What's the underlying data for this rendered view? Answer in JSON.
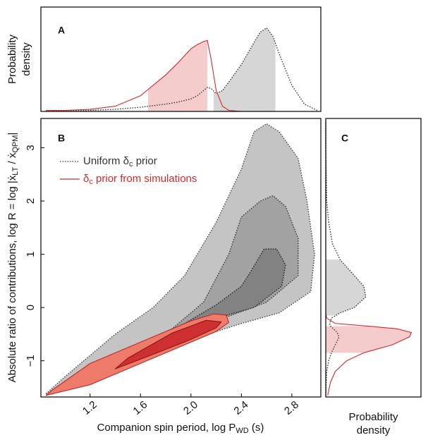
{
  "chart_data": [
    {
      "type": "line",
      "panel": "A",
      "orientation": "horizontal",
      "ylabel": [
        "Probability",
        "density"
      ],
      "xlim": [
        0.81,
        3.03
      ],
      "ylim": [
        0,
        1
      ],
      "x": [
        0.85,
        1.0,
        1.2,
        1.4,
        1.6,
        1.8,
        1.9,
        2.0,
        2.05,
        2.1,
        2.13,
        2.16,
        2.2,
        2.25,
        2.3,
        2.4,
        2.5,
        2.55,
        2.6,
        2.65,
        2.7,
        2.8,
        2.9,
        3.0
      ],
      "series": [
        {
          "color": "#333333",
          "style": "dotted",
          "fill": "#d6d6d6",
          "interval": [
            2.18,
            2.67
          ],
          "values": [
            0,
            0.005,
            0.01,
            0.02,
            0.04,
            0.07,
            0.09,
            0.12,
            0.15,
            0.2,
            0.23,
            0.22,
            0.17,
            0.2,
            0.28,
            0.45,
            0.66,
            0.76,
            0.8,
            0.72,
            0.55,
            0.25,
            0.07,
            0.01
          ]
        },
        {
          "color": "#d42a2a",
          "style": "solid",
          "fill": "#f5cccc",
          "interval": [
            1.66,
            2.13
          ],
          "values": [
            0.01,
            0.01,
            0.02,
            0.05,
            0.15,
            0.35,
            0.47,
            0.6,
            0.64,
            0.67,
            0.68,
            0.5,
            0.2,
            0.05,
            0.01,
            0,
            0,
            0,
            0,
            0,
            0,
            0,
            0,
            0
          ]
        }
      ]
    },
    {
      "type": "contour",
      "panel": "B",
      "xlabel": [
        "Companion spin period, log P",
        "WD",
        " (s)"
      ],
      "ylabel": [
        "Absolute ratio of contributions, log R = log |ẋ",
        "LT",
        " / ẋ",
        "QPM",
        "|"
      ],
      "xlim": [
        0.81,
        3.03
      ],
      "ylim": [
        -1.68,
        3.55
      ],
      "xticks": [
        1.2,
        1.6,
        {
          "value": 2,
          "label": "2.0"
        },
        2.4,
        2.8
      ],
      "yticks": [
        {
          "value": -1,
          "label": "−1"
        },
        0,
        1,
        2,
        3
      ],
      "legend": [
        {
          "parts": [
            "Uniform δ",
            "c",
            " prior"
          ],
          "color": "#333333",
          "style": "dotted"
        },
        {
          "parts": [
            "δ",
            "c",
            " prior from simulations"
          ],
          "color": "#d42a2a",
          "style": "solid"
        }
      ],
      "contours": [
        {
          "fill": "#c4c4c4",
          "edge": "#444444",
          "style": "dotted",
          "x": [
            0.85,
            1.2,
            1.6,
            2.0,
            2.4,
            2.7,
            2.95,
            2.98,
            2.92,
            2.85,
            2.7,
            2.6,
            2.5,
            2.4,
            2.3,
            2.2,
            1.95,
            1.7,
            1.4,
            1.0
          ],
          "y": [
            -1.62,
            -1.4,
            -1.0,
            -0.6,
            -0.3,
            -0.1,
            0.3,
            1.0,
            2.0,
            2.8,
            3.3,
            3.45,
            3.3,
            2.6,
            2.1,
            1.6,
            0.6,
            0.0,
            -0.5,
            -1.3
          ]
        },
        {
          "fill": "#a2a2a2",
          "edge": "#333333",
          "style": "dotted",
          "x": [
            1.6,
            1.9,
            2.2,
            2.6,
            2.85,
            2.85,
            2.75,
            2.65,
            2.55,
            2.4,
            2.3,
            2.1,
            1.8
          ],
          "y": [
            -0.9,
            -0.6,
            -0.25,
            0.1,
            0.6,
            1.3,
            1.9,
            2.1,
            2.0,
            1.7,
            1.0,
            0.1,
            -0.5
          ]
        },
        {
          "fill": "#828282",
          "edge": "#222222",
          "style": "dotted",
          "x": [
            1.95,
            2.2,
            2.5,
            2.72,
            2.75,
            2.68,
            2.58,
            2.48,
            2.4,
            2.2,
            1.95
          ],
          "y": [
            -0.42,
            -0.2,
            0.0,
            0.4,
            0.8,
            1.1,
            1.1,
            0.7,
            0.4,
            0.05,
            -0.3
          ]
        },
        {
          "fill": "#ee7a6a",
          "edge": "#b82020",
          "style": "solid",
          "x": [
            0.85,
            1.2,
            1.6,
            1.9,
            2.2,
            2.3,
            2.28,
            2.18,
            2.0,
            1.6,
            1.2,
            0.9
          ],
          "y": [
            -1.65,
            -1.45,
            -1.05,
            -0.75,
            -0.45,
            -0.28,
            -0.14,
            -0.12,
            -0.25,
            -0.65,
            -1.05,
            -1.55
          ]
        },
        {
          "fill": "#cc3030",
          "edge": "#8a1010",
          "style": "solid",
          "x": [
            1.4,
            1.7,
            2.0,
            2.2,
            2.24,
            2.12,
            1.85,
            1.5
          ],
          "y": [
            -1.15,
            -0.88,
            -0.6,
            -0.38,
            -0.27,
            -0.24,
            -0.48,
            -0.95
          ]
        }
      ]
    },
    {
      "type": "line",
      "panel": "C",
      "orientation": "vertical",
      "xlabel": [
        "Probability",
        "density"
      ],
      "xlim": [
        0,
        1
      ],
      "ylim": [
        -1.68,
        3.55
      ],
      "y": [
        -1.65,
        -1.4,
        -1.2,
        -1.0,
        -0.85,
        -0.7,
        -0.55,
        -0.47,
        -0.4,
        -0.35,
        -0.3,
        -0.2,
        -0.1,
        0,
        0.2,
        0.4,
        0.6,
        0.9,
        1.2,
        1.6,
        2.0,
        2.5,
        3.0,
        3.5
      ],
      "series": [
        {
          "color": "#333333",
          "style": "dotted",
          "fill": "#d6d6d6",
          "interval": [
            -0.15,
            0.9
          ],
          "values": [
            0,
            0.005,
            0.01,
            0.03,
            0.06,
            0.1,
            0.14,
            0.12,
            0.08,
            0.05,
            0.04,
            0.06,
            0.15,
            0.3,
            0.42,
            0.4,
            0.3,
            0.15,
            0.07,
            0.03,
            0.01,
            0.005,
            0,
            0
          ]
        },
        {
          "color": "#d42a2a",
          "style": "solid",
          "fill": "#f5cccc",
          "interval": [
            -0.85,
            -0.35
          ],
          "values": [
            0.02,
            0.05,
            0.1,
            0.22,
            0.4,
            0.7,
            0.88,
            0.9,
            0.75,
            0.45,
            0.1,
            0.01,
            0,
            0,
            0,
            0,
            0,
            0,
            0,
            0,
            0,
            0,
            0,
            0
          ]
        }
      ]
    }
  ]
}
